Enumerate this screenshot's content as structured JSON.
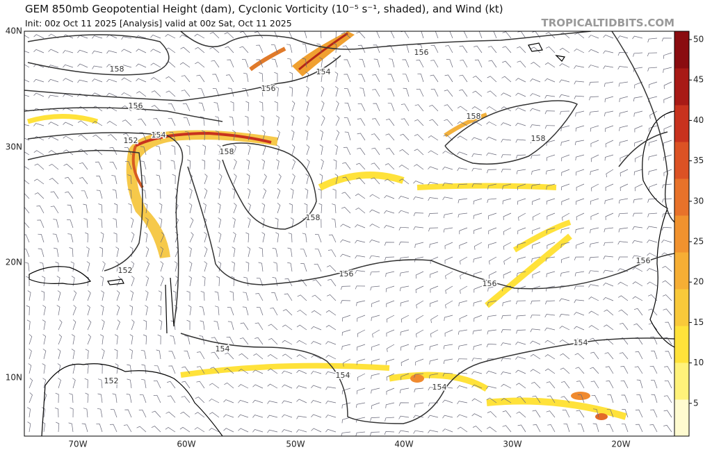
{
  "header": {
    "title": "GEM 850mb Geopotential Height (dam), Cyclonic Vorticity (10⁻⁵ s⁻¹, shaded), and Wind (kt)",
    "subtitle": "Init: 00z Oct 11 2025   [Analysis]   valid at 00z Sat, Oct 11 2025",
    "watermark": "TROPICALTIDBITS.COM"
  },
  "map": {
    "lat_labels": [
      "40N",
      "30N",
      "20N",
      "10N"
    ],
    "lon_labels": [
      "70W",
      "60W",
      "50W",
      "40W",
      "30W",
      "20W"
    ],
    "contour_labels": [
      "158",
      "156",
      "154",
      "156",
      "156",
      "154",
      "152",
      "158",
      "158",
      "158",
      "158",
      "152",
      "156",
      "156",
      "156",
      "154",
      "154",
      "154",
      "154",
      "152"
    ]
  },
  "colorbar": {
    "ticks": [
      5,
      10,
      15,
      20,
      25,
      30,
      35,
      40,
      45,
      50
    ]
  }
}
